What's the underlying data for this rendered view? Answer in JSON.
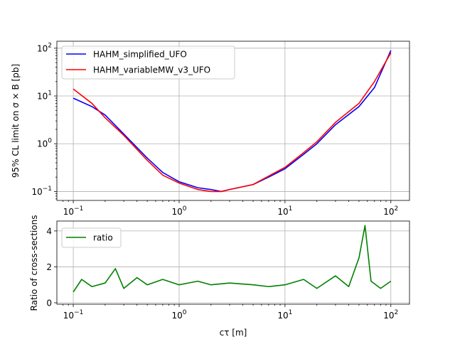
{
  "chart_data": [
    {
      "type": "line",
      "ylabel": "95% CL limit on σ × B [pb]",
      "xscale": "log",
      "yscale": "log",
      "xlim": [
        0.07,
        150
      ],
      "ylim": [
        0.065,
        140
      ],
      "grid": true,
      "legend_placement": "top-left",
      "xticks": [
        {
          "value": 0.1,
          "base": "10",
          "exp": "−1"
        },
        {
          "value": 1,
          "base": "10",
          "exp": "0"
        },
        {
          "value": 10,
          "base": "10",
          "exp": "1"
        },
        {
          "value": 100,
          "base": "10",
          "exp": "2"
        }
      ],
      "yticks": [
        {
          "value": 0.1,
          "base": "10",
          "exp": "−1"
        },
        {
          "value": 1,
          "base": "10",
          "exp": "0"
        },
        {
          "value": 10,
          "base": "10",
          "exp": "1"
        },
        {
          "value": 100,
          "base": "10",
          "exp": "2"
        }
      ],
      "x": [
        0.1,
        0.15,
        0.2,
        0.3,
        0.5,
        0.7,
        1,
        1.5,
        2,
        2.5,
        3,
        5,
        7,
        10,
        15,
        20,
        30,
        50,
        70,
        100
      ],
      "series": [
        {
          "name": "HAHM_simplified_UFO",
          "color": "#0000ff",
          "values": [
            9,
            6,
            4,
            1.6,
            0.5,
            0.25,
            0.16,
            0.12,
            0.11,
            0.1,
            0.11,
            0.14,
            0.2,
            0.3,
            0.6,
            1.0,
            2.5,
            6,
            15,
            90
          ]
        },
        {
          "name": "HAHM_variableMW_v3_UFO",
          "color": "#ff0000",
          "values": [
            14,
            7,
            3.5,
            1.5,
            0.45,
            0.22,
            0.15,
            0.11,
            0.1,
            0.1,
            0.11,
            0.14,
            0.21,
            0.32,
            0.65,
            1.1,
            2.8,
            7,
            20,
            80
          ]
        }
      ]
    },
    {
      "type": "line",
      "xlabel": "cτ [m]",
      "ylabel": "Ratio of cross-sections",
      "xscale": "log",
      "xlim": [
        0.07,
        150
      ],
      "ylim": [
        -0.08,
        4.55
      ],
      "grid": true,
      "legend_placement": "top-left",
      "xticks": [
        {
          "value": 0.1,
          "base": "10",
          "exp": "−1"
        },
        {
          "value": 1,
          "base": "10",
          "exp": "0"
        },
        {
          "value": 10,
          "base": "10",
          "exp": "1"
        },
        {
          "value": 100,
          "base": "10",
          "exp": "2"
        }
      ],
      "yticks": [
        {
          "value": 0,
          "label": "0"
        },
        {
          "value": 2,
          "label": "2"
        },
        {
          "value": 4,
          "label": "4"
        }
      ],
      "x": [
        0.1,
        0.12,
        0.15,
        0.2,
        0.25,
        0.3,
        0.4,
        0.5,
        0.7,
        1,
        1.5,
        2,
        3,
        5,
        7,
        10,
        15,
        20,
        30,
        40,
        50,
        57,
        65,
        80,
        100
      ],
      "series": [
        {
          "name": "ratio",
          "color": "#008000",
          "values": [
            0.6,
            1.3,
            0.9,
            1.1,
            1.9,
            0.8,
            1.4,
            1.0,
            1.3,
            1.0,
            1.2,
            1.0,
            1.1,
            1.0,
            0.9,
            1.0,
            1.3,
            0.8,
            1.5,
            0.9,
            2.5,
            4.3,
            1.2,
            0.8,
            1.2
          ]
        }
      ]
    }
  ]
}
